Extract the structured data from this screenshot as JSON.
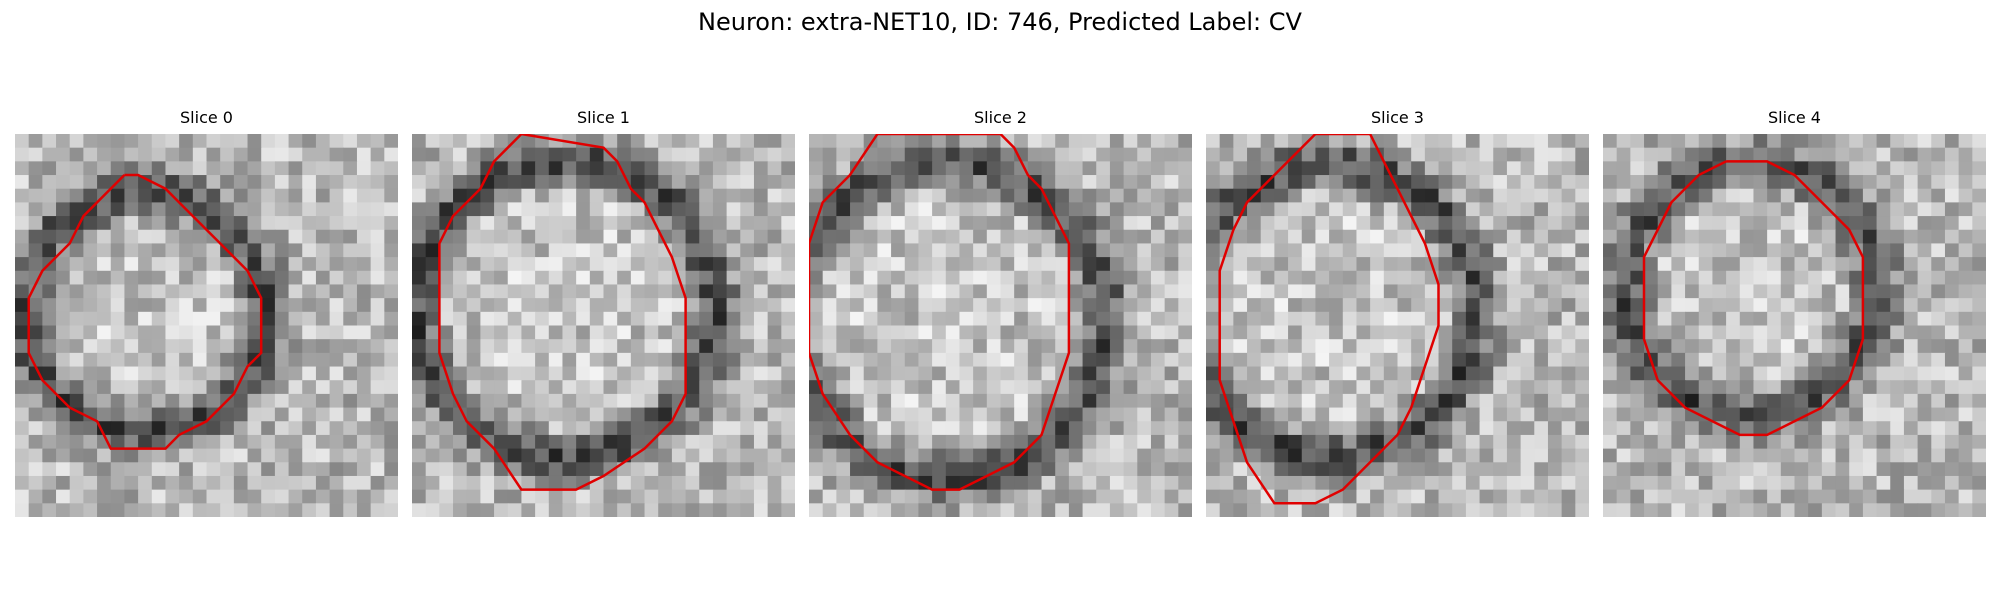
{
  "figure": {
    "title": "Neuron: extra-NET10, ID: 746, Predicted Label: CV"
  },
  "colors": {
    "contour": "#e00000",
    "pixel_dark": "#111111",
    "pixel_light": "#f2f2f2"
  },
  "panels": [
    {
      "title": "Slice 0",
      "image": "grayscale-em-crop-slice-0",
      "outline_points": [
        [
          8,
          3
        ],
        [
          5,
          6
        ],
        [
          4,
          8
        ],
        [
          3,
          9
        ],
        [
          2,
          10
        ],
        [
          1,
          12
        ],
        [
          1,
          16
        ],
        [
          2,
          18
        ],
        [
          4,
          20
        ],
        [
          6,
          21
        ],
        [
          7,
          23
        ],
        [
          11,
          23
        ],
        [
          12,
          22
        ],
        [
          14,
          21
        ],
        [
          16,
          19
        ],
        [
          17,
          17
        ],
        [
          18,
          16
        ],
        [
          18,
          12
        ],
        [
          17,
          10
        ],
        [
          16,
          9
        ],
        [
          14,
          7
        ],
        [
          12,
          5
        ],
        [
          11,
          4
        ],
        [
          9,
          3
        ]
      ]
    },
    {
      "title": "Slice 1",
      "image": "grayscale-em-crop-slice-1",
      "outline_points": [
        [
          8,
          0
        ],
        [
          6,
          2
        ],
        [
          5,
          4
        ],
        [
          3,
          6
        ],
        [
          2,
          8
        ],
        [
          2,
          12
        ],
        [
          2,
          16
        ],
        [
          3,
          19
        ],
        [
          4,
          21
        ],
        [
          6,
          23
        ],
        [
          8,
          26
        ],
        [
          12,
          26
        ],
        [
          14,
          25
        ],
        [
          17,
          23
        ],
        [
          19,
          21
        ],
        [
          20,
          19
        ],
        [
          20,
          16
        ],
        [
          20,
          12
        ],
        [
          19,
          9
        ],
        [
          18,
          7
        ],
        [
          17,
          5
        ],
        [
          16,
          4
        ],
        [
          15,
          2
        ],
        [
          14,
          1
        ]
      ]
    },
    {
      "title": "Slice 2",
      "image": "grayscale-em-crop-slice-2",
      "outline_points": [
        [
          5,
          0
        ],
        [
          3,
          3
        ],
        [
          1,
          5
        ],
        [
          0,
          8
        ],
        [
          0,
          12
        ],
        [
          0,
          16
        ],
        [
          1,
          19
        ],
        [
          3,
          22
        ],
        [
          5,
          24
        ],
        [
          7,
          25
        ],
        [
          9,
          26
        ],
        [
          11,
          26
        ],
        [
          13,
          25
        ],
        [
          15,
          24
        ],
        [
          17,
          22
        ],
        [
          18,
          19
        ],
        [
          19,
          16
        ],
        [
          19,
          12
        ],
        [
          19,
          8
        ],
        [
          18,
          6
        ],
        [
          17,
          4
        ],
        [
          16,
          3
        ],
        [
          15,
          1
        ],
        [
          14,
          0
        ]
      ]
    },
    {
      "title": "Slice 3",
      "image": "grayscale-em-crop-slice-3",
      "outline_points": [
        [
          8,
          0
        ],
        [
          5,
          3
        ],
        [
          3,
          5
        ],
        [
          2,
          7
        ],
        [
          1,
          10
        ],
        [
          1,
          14
        ],
        [
          1,
          18
        ],
        [
          2,
          21
        ],
        [
          3,
          24
        ],
        [
          5,
          27
        ],
        [
          8,
          27
        ],
        [
          10,
          26
        ],
        [
          12,
          24
        ],
        [
          14,
          22
        ],
        [
          15,
          20
        ],
        [
          16,
          17
        ],
        [
          17,
          14
        ],
        [
          17,
          11
        ],
        [
          16,
          8
        ],
        [
          15,
          6
        ],
        [
          14,
          4
        ],
        [
          13,
          2
        ],
        [
          12,
          0
        ],
        [
          10,
          0
        ]
      ]
    },
    {
      "title": "Slice 4",
      "image": "grayscale-em-crop-slice-4",
      "outline_points": [
        [
          9,
          2
        ],
        [
          7,
          3
        ],
        [
          5,
          5
        ],
        [
          4,
          7
        ],
        [
          3,
          9
        ],
        [
          3,
          12
        ],
        [
          3,
          15
        ],
        [
          4,
          18
        ],
        [
          6,
          20
        ],
        [
          8,
          21
        ],
        [
          10,
          22
        ],
        [
          12,
          22
        ],
        [
          14,
          21
        ],
        [
          16,
          20
        ],
        [
          18,
          18
        ],
        [
          19,
          15
        ],
        [
          19,
          12
        ],
        [
          19,
          9
        ],
        [
          18,
          7
        ],
        [
          16,
          5
        ],
        [
          14,
          3
        ],
        [
          12,
          2
        ],
        [
          11,
          2
        ],
        [
          10,
          2
        ]
      ]
    }
  ]
}
